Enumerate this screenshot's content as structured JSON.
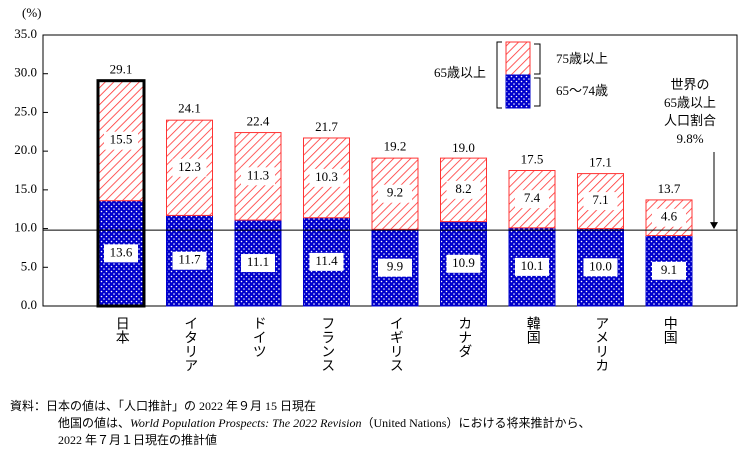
{
  "chart_data": {
    "type": "stacked-bar",
    "y_unit": "(%)",
    "categories": [
      "日本",
      "イタリア",
      "ドイツ",
      "フランス",
      "イギリス",
      "カナダ",
      "韓国",
      "アメリカ",
      "中国"
    ],
    "series": [
      {
        "name": "65～74歳",
        "color": "#0000cc",
        "values": [
          13.6,
          11.7,
          11.1,
          11.4,
          9.9,
          10.9,
          10.1,
          10.0,
          9.1
        ],
        "value_labels": [
          "13.6",
          "11.7",
          "11.1",
          "11.4",
          "9.9",
          "10.9",
          "10.1",
          "10.0",
          "9.1"
        ]
      },
      {
        "name": "75歳以上",
        "color": "#ff3333",
        "values": [
          15.5,
          12.3,
          11.3,
          10.3,
          9.2,
          8.2,
          7.4,
          7.1,
          4.6
        ],
        "value_labels": [
          "15.5",
          "12.3",
          "11.3",
          "10.3",
          "9.2",
          "8.2",
          "7.4",
          "7.1",
          "4.6"
        ]
      }
    ],
    "totals": {
      "values": [
        29.1,
        24.1,
        22.4,
        21.7,
        19.2,
        19.0,
        17.5,
        17.1,
        13.7
      ],
      "value_labels": [
        "29.1",
        "24.1",
        "22.4",
        "21.7",
        "19.2",
        "19.0",
        "17.5",
        "17.1",
        "13.7"
      ]
    },
    "highlight": "日本",
    "legend_group_label": "65歳以上",
    "reference_line": {
      "value": 9.8,
      "label": [
        "世界の",
        "65歳以上",
        "人口割合",
        "9.8%"
      ]
    },
    "ylim": [
      0,
      35
    ],
    "yticks": [
      {
        "value": 0,
        "label": "0.0"
      },
      {
        "value": 5,
        "label": "5.0"
      },
      {
        "value": 10,
        "label": "10.0"
      },
      {
        "value": 15,
        "label": "15.0"
      },
      {
        "value": 20,
        "label": "20.0"
      },
      {
        "value": 25,
        "label": "25.0"
      },
      {
        "value": 30,
        "label": "30.0"
      },
      {
        "value": 35,
        "label": "35.0"
      }
    ],
    "notes": [
      [
        "資料：",
        "日本の値は、「人口推計」の 2022 年９月 15 日現在"
      ],
      [
        "他国の値は、",
        "World Population Prospects: The 2022 Revision",
        "（United Nations）における将来推計から、"
      ],
      [
        "2022 年７月１日現在の推計値"
      ]
    ]
  }
}
